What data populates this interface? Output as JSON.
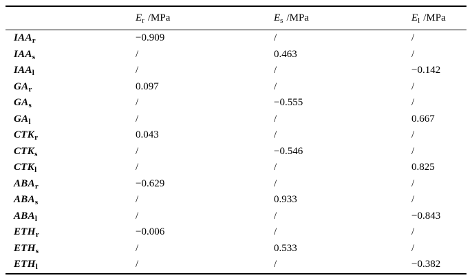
{
  "page": {
    "background_color": "#ffffff",
    "text_color": "#000000",
    "rule_color": "#000000"
  },
  "table": {
    "header": {
      "corner": "",
      "columns": [
        {
          "symbol": "E",
          "sub": "r",
          "unit": "/MPa"
        },
        {
          "symbol": "E",
          "sub": "s",
          "unit": "/MPa"
        },
        {
          "symbol": "E",
          "sub": "l",
          "unit": "/MPa"
        }
      ]
    },
    "rows": [
      {
        "label": "IAA",
        "sub": "r",
        "values": [
          "−0.909",
          "/",
          "/"
        ]
      },
      {
        "label": "IAA",
        "sub": "s",
        "values": [
          "/",
          "0.463",
          "/"
        ]
      },
      {
        "label": "IAA",
        "sub": "l",
        "values": [
          "/",
          "/",
          "−0.142"
        ]
      },
      {
        "label": "GA",
        "sub": "r",
        "values": [
          "0.097",
          "/",
          "/"
        ]
      },
      {
        "label": "GA",
        "sub": "s",
        "values": [
          "/",
          "−0.555",
          "/"
        ]
      },
      {
        "label": "GA",
        "sub": "l",
        "values": [
          "/",
          "/",
          "0.667"
        ]
      },
      {
        "label": "CTK",
        "sub": "r",
        "values": [
          "0.043",
          "/",
          "/"
        ]
      },
      {
        "label": "CTK",
        "sub": "s",
        "values": [
          "/",
          "−0.546",
          "/"
        ]
      },
      {
        "label": "CTK",
        "sub": "l",
        "values": [
          "/",
          "/",
          "0.825"
        ]
      },
      {
        "label": "ABA",
        "sub": "r",
        "values": [
          "−0.629",
          "/",
          "/"
        ]
      },
      {
        "label": "ABA",
        "sub": "s",
        "values": [
          "/",
          "0.933",
          "/"
        ]
      },
      {
        "label": "ABA",
        "sub": "l",
        "values": [
          "/",
          "/",
          "−0.843"
        ]
      },
      {
        "label": "ETH",
        "sub": "r",
        "values": [
          "−0.006",
          "/",
          "/"
        ]
      },
      {
        "label": "ETH",
        "sub": "s",
        "values": [
          "/",
          "0.533",
          "/"
        ]
      },
      {
        "label": "ETH",
        "sub": "l",
        "values": [
          "/",
          "/",
          "−0.382"
        ]
      }
    ]
  }
}
